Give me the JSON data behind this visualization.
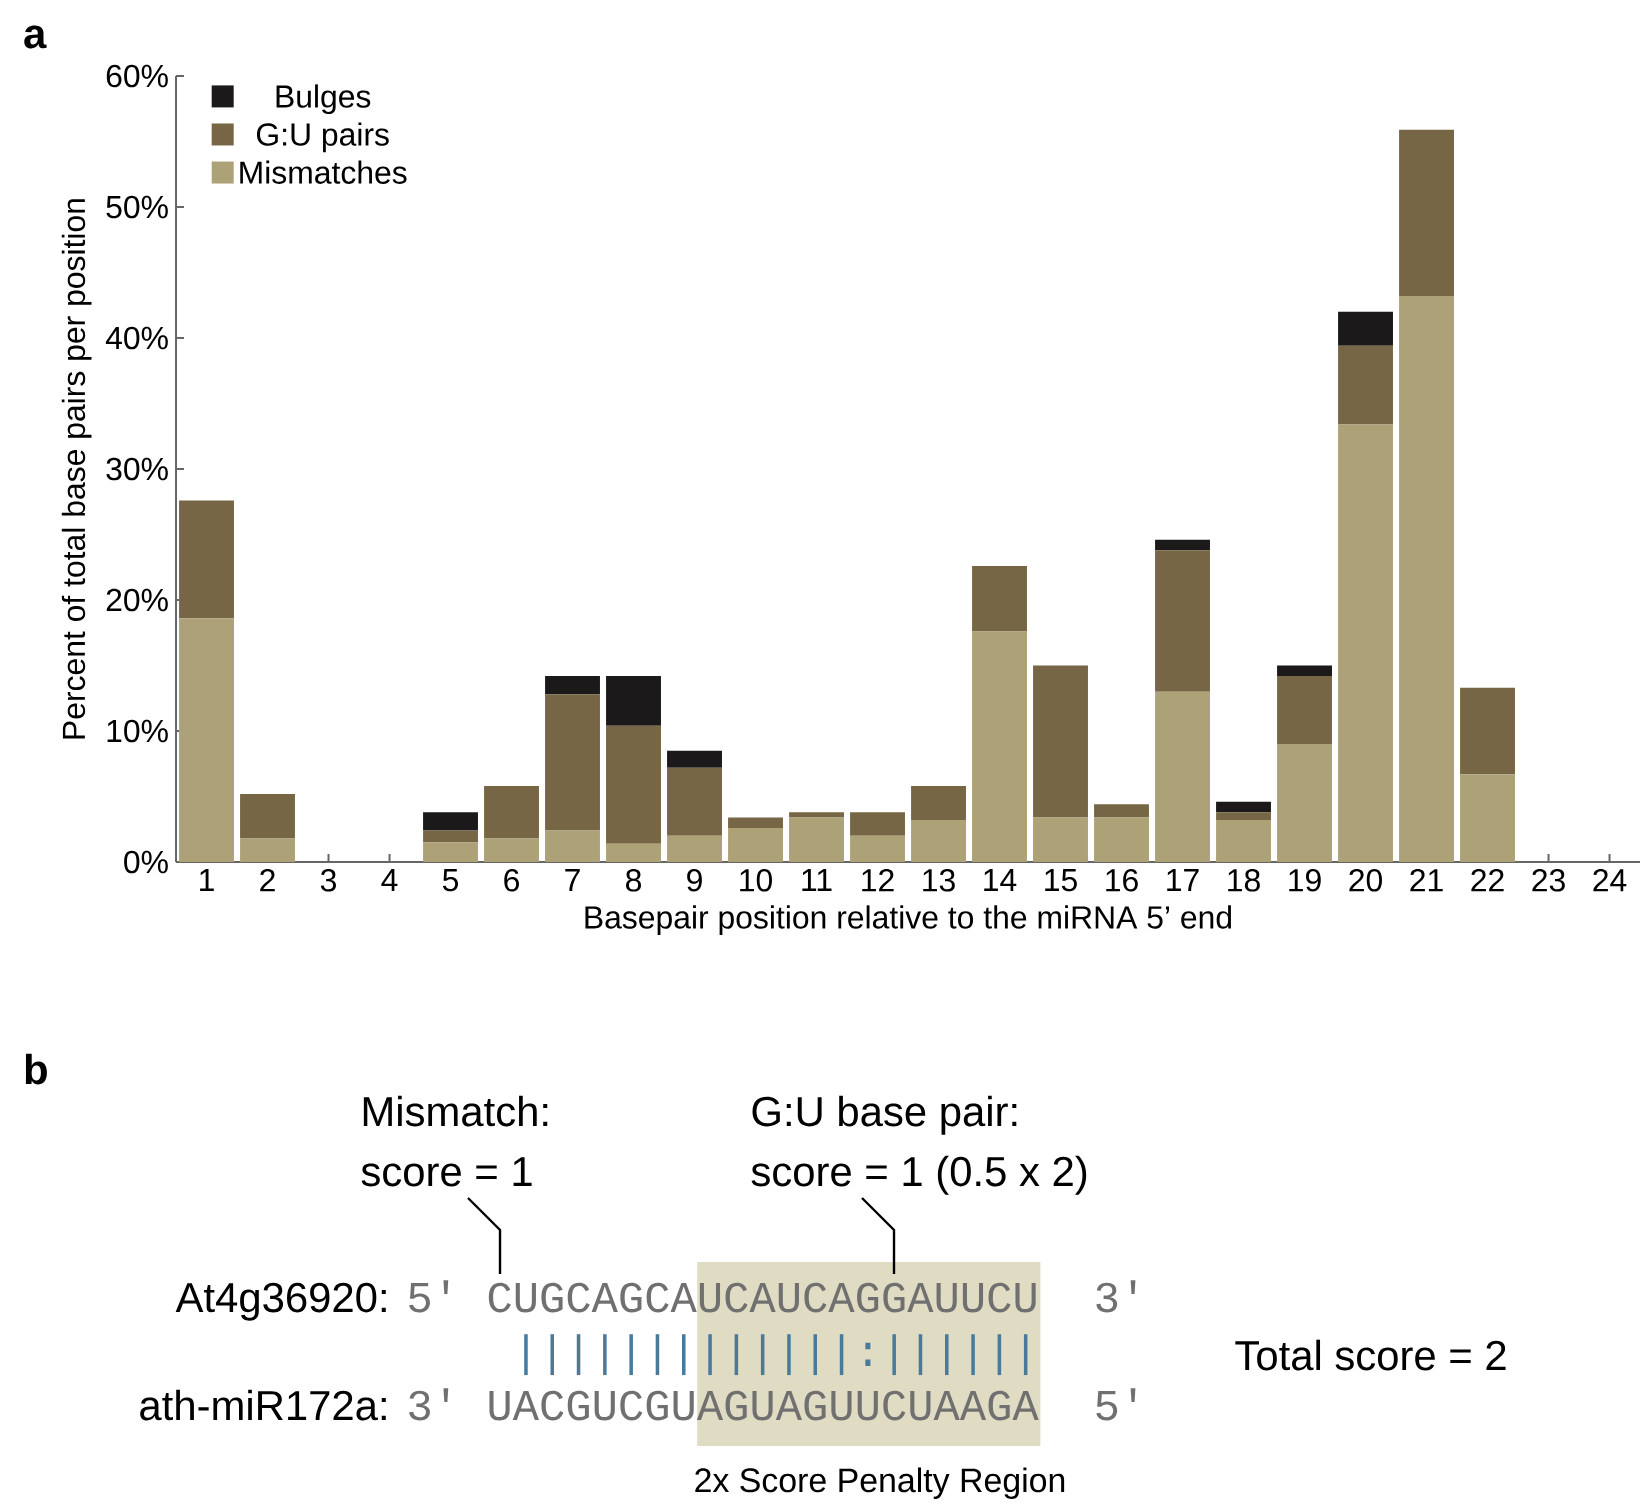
{
  "chart_data": [
    {
      "type": "bar",
      "title": "a",
      "xlabel": "Basepair position relative to the miRNA 5’ end",
      "ylabel": "Percent of total base pairs per position",
      "categories": [
        "1",
        "2",
        "3",
        "4",
        "5",
        "6",
        "7",
        "8",
        "9",
        "10",
        "11",
        "12",
        "13",
        "14",
        "15",
        "16",
        "17",
        "18",
        "19",
        "20",
        "21",
        "22",
        "23",
        "24"
      ],
      "stacked": true,
      "series": [
        {
          "name": "Mismatches",
          "color": "#ada177",
          "values": [
            18.6,
            1.8,
            0,
            0,
            1.5,
            1.8,
            2.4,
            1.4,
            2.0,
            2.6,
            3.4,
            2.0,
            3.2,
            17.6,
            3.4,
            3.4,
            13.0,
            3.2,
            9.0,
            33.4,
            43.2,
            6.7,
            0,
            0
          ]
        },
        {
          "name": "G:U pairs",
          "color": "#766645",
          "values": [
            9.0,
            3.4,
            0,
            0,
            0.9,
            4.0,
            10.4,
            9.0,
            5.2,
            0.8,
            0.4,
            1.8,
            2.6,
            5.0,
            11.6,
            1.0,
            10.8,
            0.6,
            5.2,
            6.0,
            12.7,
            6.6,
            0,
            0
          ]
        },
        {
          "name": "Bulges",
          "color": "#1b191a",
          "values": [
            0,
            0,
            0,
            0,
            1.4,
            0,
            1.4,
            3.8,
            1.3,
            0,
            0,
            0,
            0,
            0,
            0,
            0,
            0.8,
            0.8,
            0.8,
            2.6,
            0,
            0,
            0,
            0
          ]
        }
      ],
      "ylim": [
        0,
        60
      ],
      "yticks": [
        {
          "value": 0,
          "label": "0%"
        },
        {
          "value": 10,
          "label": "10%"
        },
        {
          "value": 20,
          "label": "20%"
        },
        {
          "value": 30,
          "label": "30%"
        },
        {
          "value": 40,
          "label": "40%"
        },
        {
          "value": 50,
          "label": "50%"
        },
        {
          "value": 60,
          "label": "60%"
        }
      ],
      "legend": "top left"
    },
    {
      "type": "other",
      "title": "b",
      "annotations": [
        "Mismatch:",
        "score = 1",
        "G:U base pair:",
        "score = 1 (0.5 x 2)",
        "At4g36920:",
        "5′",
        "CUGCAGCAUCAUCAGGAUUCU",
        "3′",
        "|||||||||||||:||||||",
        "ath-miR172a:",
        "3′",
        "UACGUCGUAGUAGUUCUAAGA",
        "5′",
        "Total score = 2",
        "2x Score Penalty Region"
      ]
    }
  ]
}
